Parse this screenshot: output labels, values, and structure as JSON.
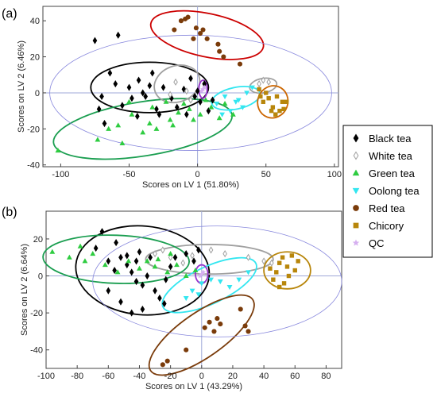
{
  "legend": {
    "entries": [
      {
        "name": "Black tea",
        "marker": "diamond",
        "color": "#000000"
      },
      {
        "name": "White tea",
        "marker": "diamond-open",
        "color": "#a0a0a0"
      },
      {
        "name": "Green tea",
        "marker": "triangle-up",
        "color": "#2ecc40"
      },
      {
        "name": "Oolong tea",
        "marker": "triangle-down",
        "color": "#33e6f0"
      },
      {
        "name": "Red tea",
        "marker": "circle",
        "color": "#7a3b0a"
      },
      {
        "name": "Chicory",
        "marker": "square",
        "color": "#b8860b"
      },
      {
        "name": "QC",
        "marker": "star",
        "color": "#d6b0f0"
      }
    ]
  },
  "chart_data": [
    {
      "panel_label": "(a)",
      "type": "scatter",
      "xlabel": "Scores on LV 1 (51.80%)",
      "ylabel": "Scores on LV 2 (6.46%)",
      "xlim": [
        -113,
        103
      ],
      "ylim": [
        -41,
        48
      ],
      "xticks": [
        -100,
        -50,
        0,
        50,
        100
      ],
      "yticks": [
        -40,
        -20,
        0,
        20,
        40
      ],
      "ellipses": [
        {
          "group": "Black tea",
          "cx": -35,
          "cy": 3,
          "rx": 43,
          "ry": 14,
          "angle": 0,
          "color": "#000000"
        },
        {
          "group": "White tea",
          "cx": 48,
          "cy": 4,
          "rx": 10,
          "ry": 4,
          "angle": 10,
          "color": "#a0a0a0"
        },
        {
          "group": "Green tea",
          "cx": -40,
          "cy": -20,
          "rx": 66,
          "ry": 15,
          "angle": 9,
          "color": "#1a9e50"
        },
        {
          "group": "Oolong tea",
          "cx": 28,
          "cy": -3,
          "rx": 18,
          "ry": 6,
          "angle": 12,
          "color": "#33e6f0"
        },
        {
          "group": "Red tea",
          "cx": 7,
          "cy": 32,
          "rx": 42,
          "ry": 12,
          "angle": -12,
          "color": "#cc0000"
        },
        {
          "group": "Chicory",
          "cx": 55,
          "cy": -5,
          "rx": 11,
          "ry": 9,
          "angle": -20,
          "color": "#cc6600"
        },
        {
          "group": "Grey",
          "cx": -15,
          "cy": 5,
          "rx": 17,
          "ry": 10,
          "angle": 20,
          "color": "#a0a0a0"
        },
        {
          "group": "QC",
          "cx": 4,
          "cy": 2,
          "rx": 3,
          "ry": 5,
          "angle": 0,
          "color": "#9933cc"
        },
        {
          "group": "All",
          "cx": -5,
          "cy": 0,
          "rx": 103,
          "ry": 32,
          "angle": 0,
          "color": "#8888dd"
        }
      ],
      "series": [
        {
          "name": "Black tea",
          "points": [
            [
              -75,
              29
            ],
            [
              -58,
              32
            ],
            [
              -64,
              11
            ],
            [
              -60,
              5
            ],
            [
              -70,
              -2
            ],
            [
              -72,
              -9
            ],
            [
              -68,
              -17
            ],
            [
              -55,
              -7
            ],
            [
              -48,
              -3
            ],
            [
              -43,
              7
            ],
            [
              -38,
              -2
            ],
            [
              -35,
              4
            ],
            [
              -33,
              11
            ],
            [
              -30,
              -9
            ],
            [
              -25,
              3
            ],
            [
              -19,
              -3
            ],
            [
              -15,
              -8
            ],
            [
              -10,
              2
            ],
            [
              -5,
              8
            ],
            [
              -2,
              -2
            ],
            [
              0,
              1
            ],
            [
              5,
              5
            ],
            [
              8,
              -10
            ],
            [
              11,
              -4
            ],
            [
              -40,
              0
            ],
            [
              -50,
              3
            ],
            [
              -28,
              -12
            ],
            [
              -8,
              -12
            ],
            [
              2,
              -5
            ],
            [
              -44,
              -13
            ]
          ]
        },
        {
          "name": "White tea",
          "points": [
            [
              -16,
              6
            ],
            [
              -8,
              1
            ],
            [
              -20,
              -1
            ],
            [
              -5,
              -4
            ],
            [
              45,
              5
            ],
            [
              48,
              7
            ],
            [
              52,
              6
            ]
          ]
        },
        {
          "name": "Green tea",
          "points": [
            [
              -102,
              -32
            ],
            [
              -73,
              -26
            ],
            [
              -55,
              -28
            ],
            [
              -40,
              -22
            ],
            [
              -30,
              -20
            ],
            [
              -20,
              -15
            ],
            [
              -14,
              -11
            ],
            [
              -6,
              -9
            ],
            [
              2,
              -12
            ],
            [
              10,
              -8
            ],
            [
              16,
              -14
            ],
            [
              20,
              -6
            ],
            [
              -48,
              -12
            ],
            [
              -33,
              -8
            ],
            [
              -23,
              -5
            ],
            [
              -58,
              -18
            ],
            [
              -65,
              -20
            ],
            [
              -10,
              -6
            ],
            [
              -3,
              -15
            ],
            [
              6,
              -4
            ],
            [
              -18,
              -18
            ],
            [
              26,
              -12
            ],
            [
              -50,
              -5
            ],
            [
              -35,
              -17
            ]
          ]
        },
        {
          "name": "Oolong tea",
          "points": [
            [
              14,
              -6
            ],
            [
              20,
              -2
            ],
            [
              24,
              -10
            ],
            [
              30,
              -4
            ],
            [
              36,
              0
            ],
            [
              40,
              3
            ],
            [
              33,
              -8
            ],
            [
              28,
              -5
            ],
            [
              18,
              -12
            ]
          ]
        },
        {
          "name": "Red tea",
          "points": [
            [
              -17,
              35
            ],
            [
              -12,
              40
            ],
            [
              -9,
              41
            ],
            [
              -7,
              42
            ],
            [
              -1,
              36
            ],
            [
              2,
              33
            ],
            [
              4,
              35
            ],
            [
              7,
              30
            ],
            [
              15,
              27
            ],
            [
              16,
              23
            ],
            [
              19,
              20
            ],
            [
              -3,
              30
            ],
            [
              31,
              16
            ]
          ]
        },
        {
          "name": "Chicory",
          "points": [
            [
              48,
              -5
            ],
            [
              52,
              -3
            ],
            [
              55,
              -8
            ],
            [
              58,
              -2
            ],
            [
              62,
              -5
            ],
            [
              60,
              -10
            ],
            [
              54,
              -10
            ],
            [
              50,
              0
            ],
            [
              57,
              -12
            ],
            [
              63,
              -9
            ],
            [
              46,
              -2
            ],
            [
              45,
              2
            ],
            [
              65,
              -5
            ]
          ]
        },
        {
          "name": "QC",
          "points": [
            [
              4,
              2
            ],
            [
              5,
              3
            ],
            [
              3,
              1
            ]
          ]
        }
      ]
    },
    {
      "panel_label": "(b)",
      "type": "scatter",
      "xlabel": "Scores on LV 1 (43.29%)",
      "ylabel": "Scores on LV 2 (6.64%)",
      "xlim": [
        -100,
        90
      ],
      "ylim": [
        -50,
        35
      ],
      "xticks": [
        -100,
        -80,
        -60,
        -40,
        -20,
        0,
        20,
        40,
        60,
        80
      ],
      "yticks": [
        -40,
        -20,
        0,
        20
      ],
      "ellipses": [
        {
          "group": "Black tea",
          "cx": -38,
          "cy": 3,
          "rx": 43,
          "ry": 24,
          "angle": -5,
          "color": "#000000"
        },
        {
          "group": "White tea",
          "cx": 5,
          "cy": 9,
          "rx": 41,
          "ry": 8,
          "angle": 0,
          "color": "#a0a0a0"
        },
        {
          "group": "Green tea",
          "cx": -55,
          "cy": 9,
          "rx": 47,
          "ry": 13,
          "angle": -2,
          "color": "#1a9e50"
        },
        {
          "group": "Oolong tea",
          "cx": 5,
          "cy": -5,
          "rx": 33,
          "ry": 10,
          "angle": 25,
          "color": "#33e6f0"
        },
        {
          "group": "Red tea",
          "cx": 0,
          "cy": -32,
          "rx": 40,
          "ry": 12,
          "angle": 35,
          "color": "#7a3b0a"
        },
        {
          "group": "Chicory",
          "cx": 55,
          "cy": 3,
          "rx": 15,
          "ry": 10,
          "angle": 0,
          "color": "#b8860b"
        },
        {
          "group": "QC",
          "cx": 0,
          "cy": 1,
          "rx": 4,
          "ry": 5,
          "angle": 0,
          "color": "#9933cc"
        },
        {
          "group": "All",
          "cx": 10,
          "cy": -3,
          "rx": 80,
          "ry": 30,
          "angle": 0,
          "color": "#8888dd"
        }
      ],
      "series": [
        {
          "name": "Black tea",
          "points": [
            [
              -64,
              24
            ],
            [
              -68,
              15
            ],
            [
              -60,
              8
            ],
            [
              -56,
              3
            ],
            [
              -52,
              10
            ],
            [
              -48,
              6
            ],
            [
              -45,
              2
            ],
            [
              -42,
              -3
            ],
            [
              -38,
              -5
            ],
            [
              -35,
              0
            ],
            [
              -30,
              -8
            ],
            [
              -27,
              -12
            ],
            [
              -24,
              -15
            ],
            [
              -20,
              5
            ],
            [
              -17,
              10
            ],
            [
              -10,
              12
            ],
            [
              -5,
              8
            ],
            [
              -2,
              14
            ],
            [
              -48,
              11
            ],
            [
              -40,
              13
            ],
            [
              -33,
              10
            ],
            [
              -60,
              -8
            ],
            [
              -52,
              -14
            ],
            [
              -45,
              -20
            ],
            [
              -38,
              -18
            ],
            [
              -23,
              -2
            ],
            [
              -55,
              18
            ],
            [
              -42,
              8
            ]
          ]
        },
        {
          "name": "White tea",
          "points": [
            [
              -30,
              12
            ],
            [
              -20,
              10
            ],
            [
              -12,
              7
            ],
            [
              -6,
              11
            ],
            [
              6,
              14
            ],
            [
              15,
              12
            ],
            [
              30,
              10
            ],
            [
              40,
              8
            ],
            [
              45,
              7
            ],
            [
              -25,
              14
            ]
          ]
        },
        {
          "name": "Green tea",
          "points": [
            [
              -96,
              13
            ],
            [
              -78,
              16
            ],
            [
              -70,
              12
            ],
            [
              -62,
              6
            ],
            [
              -54,
              2
            ],
            [
              -47,
              8
            ],
            [
              -40,
              4
            ],
            [
              -35,
              8
            ],
            [
              -28,
              9
            ],
            [
              -22,
              2
            ],
            [
              -16,
              6
            ],
            [
              -10,
              0
            ],
            [
              -4,
              3
            ],
            [
              -20,
              12
            ],
            [
              -30,
              5
            ],
            [
              -75,
              8
            ],
            [
              -85,
              10
            ]
          ]
        },
        {
          "name": "Oolong tea",
          "points": [
            [
              -10,
              -12
            ],
            [
              -6,
              -8
            ],
            [
              0,
              -4
            ],
            [
              6,
              -2
            ],
            [
              12,
              -3
            ],
            [
              18,
              -6
            ],
            [
              24,
              -2
            ],
            [
              30,
              2
            ],
            [
              -2,
              -10
            ]
          ]
        },
        {
          "name": "Red tea",
          "points": [
            [
              -25,
              -48
            ],
            [
              -22,
              -46
            ],
            [
              -10,
              -40
            ],
            [
              2,
              -28
            ],
            [
              5,
              -25
            ],
            [
              8,
              -30
            ],
            [
              10,
              -23
            ],
            [
              12,
              -26
            ],
            [
              25,
              -18
            ],
            [
              28,
              -27
            ],
            [
              30,
              -30
            ]
          ]
        },
        {
          "name": "Chicory",
          "points": [
            [
              44,
              4
            ],
            [
              48,
              2
            ],
            [
              50,
              7
            ],
            [
              52,
              10
            ],
            [
              55,
              5
            ],
            [
              58,
              11
            ],
            [
              60,
              3
            ],
            [
              53,
              -4
            ],
            [
              46,
              -2
            ],
            [
              56,
              0
            ],
            [
              62,
              8
            ],
            [
              50,
              -6
            ]
          ]
        },
        {
          "name": "QC",
          "points": [
            [
              0,
              1
            ],
            [
              1,
              2
            ],
            [
              -1,
              0
            ]
          ]
        }
      ]
    }
  ]
}
